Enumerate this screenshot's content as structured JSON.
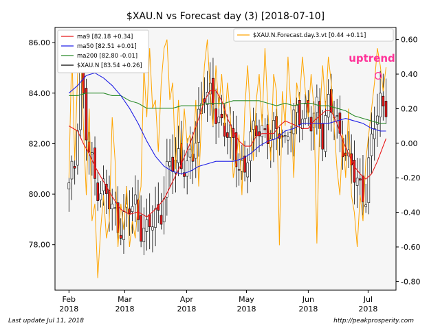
{
  "footer": {
    "left": "Last update Jul 11, 2018",
    "right": "http://peakprosperity.com"
  },
  "chart_data": {
    "type": "candlestick",
    "title": "$XAU.N vs Forecast day (3)  [2018-07-10]",
    "xlabel": "",
    "ylabel": "",
    "grid": false,
    "annotation": {
      "text": "uptrend",
      "marker": "O",
      "color": "#ff3399"
    },
    "x_axis": {
      "ticks": [
        {
          "date": "2018-02-01",
          "label": "Feb\n2018"
        },
        {
          "date": "2018-03-01",
          "label": "Mar\n2018"
        },
        {
          "date": "2018-04-01",
          "label": "Apr\n2018"
        },
        {
          "date": "2018-05-01",
          "label": "May\n2018"
        },
        {
          "date": "2018-06-01",
          "label": "Jun\n2018"
        },
        {
          "date": "2018-07-01",
          "label": "Jul\n2018"
        }
      ],
      "range": [
        "2018-01-25",
        "2018-07-15"
      ]
    },
    "y_left": {
      "ticks": [
        "78.00",
        "80.00",
        "82.00",
        "84.00",
        "86.00"
      ],
      "ylim": [
        76.2,
        86.6
      ]
    },
    "y_right": {
      "ticks": [
        "-0.80",
        "-0.60",
        "-0.40",
        "-0.20",
        "0.00",
        "0.20",
        "0.40",
        "0.60"
      ],
      "ylim": [
        -0.85,
        0.67
      ]
    },
    "legend_left": {
      "position": "top-left",
      "entries": [
        {
          "label": "ma9 [82.18 +0.34]",
          "color": "#e8191a"
        },
        {
          "label": "ma50 [82.51 +0.01]",
          "color": "#1f1fe6"
        },
        {
          "label": "ma200 [82.80 -0.01]",
          "color": "#2a8a2a"
        },
        {
          "label": "$XAU.N [83.54 +0.26]",
          "color": "#000000"
        }
      ]
    },
    "legend_right": {
      "position": "top-right",
      "entries": [
        {
          "label": "$XAU.N.Forecast.day.3.vt [0.44 +0.11]",
          "color": "#ffa500"
        }
      ]
    },
    "colors": {
      "up": "#ffffff",
      "down": "#e8191a",
      "ma9": "#e8191a",
      "ma50": "#1f1fe6",
      "ma200": "#2a8a2a",
      "forecast": "#ffa500"
    },
    "price_series": {
      "start_date": "2018-02-01",
      "count": 111,
      "points": [
        [
          0,
          80.2
        ],
        [
          2,
          81.2
        ],
        [
          4,
          85.1
        ],
        [
          6,
          82.3
        ],
        [
          9,
          80.5
        ],
        [
          12,
          80.2
        ],
        [
          15,
          79.3
        ],
        [
          18,
          78.8
        ],
        [
          21,
          79.4
        ],
        [
          23,
          79.6
        ],
        [
          25,
          78.8
        ],
        [
          27,
          78.4
        ],
        [
          30,
          79.2
        ],
        [
          32,
          79.4
        ],
        [
          34,
          80.7
        ],
        [
          36,
          81.2
        ],
        [
          38,
          81.6
        ],
        [
          41,
          80.9
        ],
        [
          43,
          81.5
        ],
        [
          45,
          83.2
        ],
        [
          47,
          84.1
        ],
        [
          49,
          83.7
        ],
        [
          52,
          83.1
        ],
        [
          54,
          82.6
        ],
        [
          57,
          81.9
        ],
        [
          59,
          81.3
        ],
        [
          61,
          80.9
        ],
        [
          63,
          82.1
        ],
        [
          66,
          82.9
        ],
        [
          68,
          82.3
        ],
        [
          70,
          82.1
        ],
        [
          73,
          82.9
        ],
        [
          75,
          81.9
        ],
        [
          77,
          82.6
        ],
        [
          79,
          83.3
        ],
        [
          81,
          83.4
        ],
        [
          84,
          82.7
        ],
        [
          86,
          83.5
        ],
        [
          88,
          82.4
        ],
        [
          90,
          83.4
        ],
        [
          92,
          83.2
        ],
        [
          95,
          82.1
        ],
        [
          97,
          81.1
        ],
        [
          99,
          80.8
        ],
        [
          101,
          80.4
        ],
        [
          103,
          79.9
        ],
        [
          106,
          82.9
        ],
        [
          108,
          83.8
        ],
        [
          110,
          83.5
        ]
      ]
    },
    "ma9": [
      [
        0,
        82.7
      ],
      [
        3,
        82.5
      ],
      [
        5,
        82.0
      ],
      [
        7,
        81.6
      ],
      [
        9,
        81.1
      ],
      [
        12,
        80.5
      ],
      [
        15,
        79.9
      ],
      [
        18,
        79.4
      ],
      [
        21,
        79.2
      ],
      [
        24,
        79.3
      ],
      [
        27,
        79.1
      ],
      [
        30,
        79.4
      ],
      [
        33,
        79.8
      ],
      [
        36,
        80.5
      ],
      [
        39,
        81.2
      ],
      [
        42,
        82.0
      ],
      [
        45,
        83.0
      ],
      [
        47,
        83.7
      ],
      [
        49,
        84.1
      ],
      [
        51,
        84.1
      ],
      [
        53,
        83.7
      ],
      [
        55,
        83.0
      ],
      [
        57,
        82.5
      ],
      [
        59,
        82.1
      ],
      [
        61,
        81.9
      ],
      [
        63,
        81.9
      ],
      [
        65,
        82.3
      ],
      [
        67,
        82.4
      ],
      [
        69,
        82.4
      ],
      [
        71,
        82.4
      ],
      [
        73,
        82.7
      ],
      [
        75,
        82.9
      ],
      [
        77,
        82.8
      ],
      [
        79,
        82.7
      ],
      [
        81,
        82.6
      ],
      [
        83,
        82.6
      ],
      [
        85,
        82.9
      ],
      [
        87,
        83.1
      ],
      [
        89,
        83.3
      ],
      [
        91,
        83.3
      ],
      [
        93,
        82.8
      ],
      [
        95,
        82.1
      ],
      [
        97,
        81.6
      ],
      [
        99,
        81.1
      ],
      [
        101,
        80.8
      ],
      [
        103,
        80.6
      ],
      [
        105,
        80.8
      ],
      [
        107,
        81.3
      ],
      [
        110,
        82.2
      ]
    ],
    "ma50": [
      [
        0,
        84.0
      ],
      [
        3,
        84.3
      ],
      [
        6,
        84.7
      ],
      [
        9,
        84.8
      ],
      [
        12,
        84.6
      ],
      [
        15,
        84.3
      ],
      [
        18,
        83.9
      ],
      [
        21,
        83.4
      ],
      [
        24,
        82.8
      ],
      [
        27,
        82.1
      ],
      [
        30,
        81.5
      ],
      [
        33,
        81.1
      ],
      [
        36,
        80.9
      ],
      [
        39,
        80.8
      ],
      [
        42,
        80.9
      ],
      [
        45,
        81.1
      ],
      [
        48,
        81.2
      ],
      [
        51,
        81.3
      ],
      [
        54,
        81.3
      ],
      [
        57,
        81.3
      ],
      [
        60,
        81.4
      ],
      [
        63,
        81.6
      ],
      [
        66,
        81.9
      ],
      [
        69,
        82.1
      ],
      [
        72,
        82.2
      ],
      [
        75,
        82.5
      ],
      [
        78,
        82.6
      ],
      [
        81,
        82.8
      ],
      [
        84,
        82.8
      ],
      [
        87,
        82.8
      ],
      [
        90,
        82.8
      ],
      [
        93,
        82.9
      ],
      [
        96,
        83.0
      ],
      [
        99,
        82.9
      ],
      [
        102,
        82.8
      ],
      [
        105,
        82.6
      ],
      [
        108,
        82.5
      ],
      [
        110,
        82.5
      ]
    ],
    "ma200": [
      [
        0,
        83.9
      ],
      [
        3,
        83.9
      ],
      [
        6,
        84.0
      ],
      [
        9,
        84.0
      ],
      [
        12,
        84.0
      ],
      [
        15,
        83.9
      ],
      [
        18,
        83.9
      ],
      [
        21,
        83.7
      ],
      [
        24,
        83.6
      ],
      [
        27,
        83.4
      ],
      [
        30,
        83.4
      ],
      [
        33,
        83.4
      ],
      [
        36,
        83.4
      ],
      [
        39,
        83.5
      ],
      [
        42,
        83.5
      ],
      [
        45,
        83.5
      ],
      [
        48,
        83.6
      ],
      [
        51,
        83.6
      ],
      [
        54,
        83.6
      ],
      [
        57,
        83.7
      ],
      [
        60,
        83.7
      ],
      [
        63,
        83.7
      ],
      [
        66,
        83.7
      ],
      [
        69,
        83.6
      ],
      [
        72,
        83.5
      ],
      [
        75,
        83.6
      ],
      [
        78,
        83.5
      ],
      [
        81,
        83.6
      ],
      [
        84,
        83.6
      ],
      [
        87,
        83.5
      ],
      [
        90,
        83.5
      ],
      [
        93,
        83.4
      ],
      [
        96,
        83.3
      ],
      [
        99,
        83.1
      ],
      [
        102,
        83.0
      ],
      [
        105,
        82.9
      ],
      [
        108,
        82.8
      ],
      [
        110,
        82.8
      ]
    ],
    "forecast_series": [
      [
        0,
        -0.2
      ],
      [
        1,
        0.55
      ],
      [
        2,
        -0.1
      ],
      [
        3,
        0.4
      ],
      [
        4,
        0.62
      ],
      [
        5,
        0.1
      ],
      [
        6,
        -0.3
      ],
      [
        7,
        0.2
      ],
      [
        8,
        -0.45
      ],
      [
        9,
        -0.35
      ],
      [
        10,
        -0.78
      ],
      [
        11,
        -0.5
      ],
      [
        12,
        -0.3
      ],
      [
        13,
        -0.55
      ],
      [
        14,
        -0.45
      ],
      [
        15,
        0.15
      ],
      [
        16,
        -0.1
      ],
      [
        17,
        -0.6
      ],
      [
        18,
        -0.35
      ],
      [
        19,
        -0.5
      ],
      [
        20,
        -0.25
      ],
      [
        21,
        -0.6
      ],
      [
        22,
        -0.45
      ],
      [
        23,
        -0.55
      ],
      [
        24,
        -0.35
      ],
      [
        25,
        -0.25
      ],
      [
        26,
        0.45
      ],
      [
        27,
        0.15
      ],
      [
        28,
        0.55
      ],
      [
        29,
        0.2
      ],
      [
        30,
        0.25
      ],
      [
        31,
        -0.05
      ],
      [
        32,
        0.35
      ],
      [
        33,
        0.55
      ],
      [
        34,
        0.6
      ],
      [
        35,
        0.25
      ],
      [
        36,
        0.35
      ],
      [
        37,
        -0.15
      ],
      [
        38,
        0.25
      ],
      [
        39,
        -0.1
      ],
      [
        40,
        0.2
      ],
      [
        41,
        0.0
      ],
      [
        42,
        0.05
      ],
      [
        43,
        -0.1
      ],
      [
        44,
        0.25
      ],
      [
        45,
        -0.25
      ],
      [
        46,
        0.15
      ],
      [
        47,
        0.45
      ],
      [
        48,
        0.6
      ],
      [
        49,
        0.3
      ],
      [
        50,
        0.1
      ],
      [
        51,
        0.45
      ],
      [
        52,
        0.2
      ],
      [
        53,
        0.4
      ],
      [
        54,
        0.1
      ],
      [
        55,
        0.35
      ],
      [
        56,
        0.15
      ],
      [
        57,
        -0.2
      ],
      [
        58,
        -0.1
      ],
      [
        59,
        0.05
      ],
      [
        60,
        -0.3
      ],
      [
        61,
        0.2
      ],
      [
        62,
        0.45
      ],
      [
        63,
        0.15
      ],
      [
        64,
        -0.1
      ],
      [
        65,
        0.25
      ],
      [
        66,
        0.4
      ],
      [
        67,
        0.1
      ],
      [
        68,
        0.55
      ],
      [
        69,
        0.2
      ],
      [
        70,
        -0.1
      ],
      [
        71,
        0.4
      ],
      [
        72,
        0.3
      ],
      [
        73,
        -0.59
      ],
      [
        74,
        0.3
      ],
      [
        75,
        0.1
      ],
      [
        76,
        0.5
      ],
      [
        77,
        0.2
      ],
      [
        78,
        -0.2
      ],
      [
        79,
        0.35
      ],
      [
        80,
        0.25
      ],
      [
        81,
        0.5
      ],
      [
        82,
        0.3
      ],
      [
        83,
        0.15
      ],
      [
        84,
        0.4
      ],
      [
        85,
        0.2
      ],
      [
        86,
        -0.58
      ],
      [
        87,
        0.15
      ],
      [
        88,
        0.45
      ],
      [
        89,
        0.2
      ],
      [
        90,
        0.5
      ],
      [
        91,
        0.35
      ],
      [
        92,
        0.1
      ],
      [
        93,
        -0.15
      ],
      [
        94,
        -0.3
      ],
      [
        95,
        0.05
      ],
      [
        96,
        -0.2
      ],
      [
        97,
        0.2
      ],
      [
        98,
        -0.3
      ],
      [
        99,
        -0.4
      ],
      [
        100,
        -0.6
      ],
      [
        101,
        -0.3
      ],
      [
        102,
        -0.45
      ],
      [
        103,
        -0.1
      ],
      [
        104,
        0.05
      ],
      [
        105,
        0.2
      ],
      [
        106,
        0.35
      ],
      [
        107,
        0.55
      ],
      [
        108,
        0.45
      ],
      [
        109,
        0.3
      ],
      [
        110,
        0.44
      ]
    ]
  }
}
